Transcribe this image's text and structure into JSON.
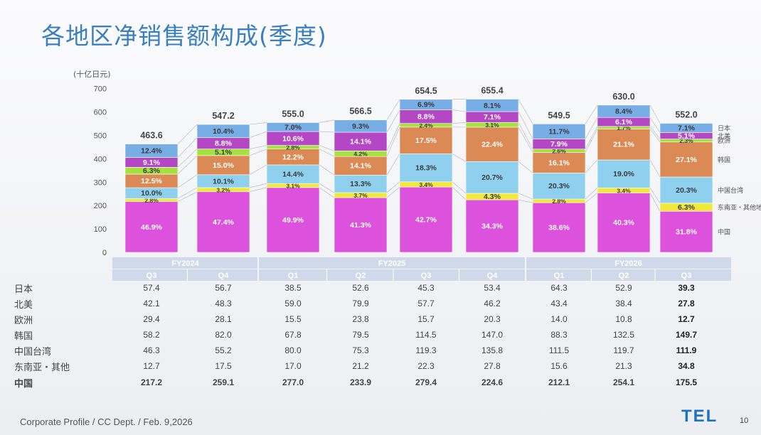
{
  "title": "各地区净销售额构成(季度)",
  "unit_label": "(十亿日元)",
  "footer": "Corporate Profile / CC Dept. / Feb. 9,2026",
  "logo": "TEL",
  "page_number": "10",
  "colors": {
    "japan": "#78aee6",
    "north_america": "#b447c4",
    "europe": "#a6e23f",
    "korea": "#dc8a55",
    "taiwan": "#8fd0ef",
    "sea_other": "#f2e83b",
    "china": "#dd52dd",
    "header": "#cfd9ea",
    "title": "#3a7fc1"
  },
  "chart_data": {
    "type": "bar",
    "stacked": true,
    "ylabel": "(十亿日元)",
    "ylim": [
      0,
      700
    ],
    "yticks": [
      0,
      100,
      200,
      300,
      400,
      500,
      600,
      700
    ],
    "fiscal_years": [
      {
        "label": "FY2024",
        "span": 2
      },
      {
        "label": "FY2025",
        "span": 4
      },
      {
        "label": "FY2026",
        "span": 3
      }
    ],
    "categories": [
      "Q3",
      "Q4",
      "Q1",
      "Q2",
      "Q3",
      "Q4",
      "Q1",
      "Q2",
      "Q3"
    ],
    "totals": [
      "463.6",
      "547.2",
      "555.0",
      "566.5",
      "654.5",
      "655.4",
      "549.5",
      "630.0",
      "552.0"
    ],
    "series": [
      {
        "name": "中国",
        "table_label": "中国",
        "key": "china",
        "values": [
          217.2,
          259.1,
          277.0,
          233.9,
          279.4,
          224.6,
          212.1,
          254.1,
          175.5
        ],
        "display": [
          "217.2",
          "259.1",
          "277.0",
          "233.9",
          "279.4",
          "224.6",
          "212.1",
          "254.1",
          "175.5"
        ],
        "pct": [
          "46.9%",
          "47.4%",
          "49.9%",
          "41.3%",
          "42.7%",
          "34.3%",
          "38.6%",
          "40.3%",
          "31.8%"
        ]
      },
      {
        "name": "东南亚・其他地",
        "table_label": "东南亚・其他",
        "key": "sea_other",
        "values": [
          12.7,
          17.5,
          17.0,
          21.2,
          22.3,
          27.8,
          15.6,
          21.3,
          34.8
        ],
        "display": [
          "12.7",
          "17.5",
          "17.0",
          "21.2",
          "22.3",
          "27.8",
          "15.6",
          "21.3",
          "34.8"
        ],
        "pct": [
          "2.8%",
          "3.2%",
          "3.1%",
          "3.7%",
          "3.4%",
          "4.3%",
          "2.8%",
          "3.4%",
          "6.3%"
        ]
      },
      {
        "name": "中国台湾",
        "table_label": "中国台湾",
        "key": "taiwan",
        "values": [
          46.3,
          55.2,
          80.0,
          75.3,
          119.3,
          135.8,
          111.5,
          119.7,
          111.9
        ],
        "display": [
          "46.3",
          "55.2",
          "80.0",
          "75.3",
          "119.3",
          "135.8",
          "111.5",
          "119.7",
          "111.9"
        ],
        "pct": [
          "10.0%",
          "10.1%",
          "14.4%",
          "13.3%",
          "18.3%",
          "20.7%",
          "20.3%",
          "19.0%",
          "20.3%"
        ]
      },
      {
        "name": "韩国",
        "table_label": "韩国",
        "key": "korea",
        "values": [
          58.2,
          82.0,
          67.8,
          79.5,
          114.5,
          147.0,
          88.3,
          132.5,
          149.7
        ],
        "display": [
          "58.2",
          "82.0",
          "67.8",
          "79.5",
          "114.5",
          "147.0",
          "88.3",
          "132.5",
          "149.7"
        ],
        "pct": [
          "12.5%",
          "15.0%",
          "12.2%",
          "14.1%",
          "17.5%",
          "22.4%",
          "16.1%",
          "21.1%",
          "27.1%"
        ]
      },
      {
        "name": "欧洲",
        "table_label": "欧洲",
        "key": "europe",
        "values": [
          29.4,
          28.1,
          15.5,
          23.8,
          15.7,
          20.3,
          14.0,
          10.8,
          12.7
        ],
        "display": [
          "29.4",
          "28.1",
          "15.5",
          "23.8",
          "15.7",
          "20.3",
          "14.0",
          "10.8",
          "12.7"
        ],
        "pct": [
          "6.3%",
          "5.1%",
          "2.8%",
          "4.2%",
          "2.4%",
          "3.1%",
          "2.6%",
          "1.7%",
          "2.3%"
        ]
      },
      {
        "name": "北美",
        "table_label": "北美",
        "key": "north_america",
        "values": [
          42.1,
          48.3,
          59.0,
          79.9,
          57.7,
          46.2,
          43.4,
          38.4,
          27.8
        ],
        "display": [
          "42.1",
          "48.3",
          "59.0",
          "79.9",
          "57.7",
          "46.2",
          "43.4",
          "38.4",
          "27.8"
        ],
        "pct": [
          "9.1%",
          "8.8%",
          "10.6%",
          "14.1%",
          "8.8%",
          "7.1%",
          "7.9%",
          "6.1%",
          "5.1%"
        ]
      },
      {
        "name": "日本",
        "table_label": "日本",
        "key": "japan",
        "values": [
          57.4,
          56.7,
          38.5,
          52.6,
          45.3,
          53.4,
          64.3,
          52.9,
          39.3
        ],
        "display": [
          "57.4",
          "56.7",
          "38.5",
          "52.6",
          "45.3",
          "53.4",
          "64.3",
          "52.9",
          "39.3"
        ],
        "pct": [
          "12.4%",
          "10.4%",
          "7.0%",
          "9.3%",
          "6.9%",
          "8.1%",
          "11.7%",
          "8.4%",
          "7.1%"
        ]
      }
    ],
    "table_row_order": [
      "japan",
      "north_america",
      "europe",
      "korea",
      "taiwan",
      "sea_other",
      "china"
    ],
    "legend_position": "right"
  }
}
